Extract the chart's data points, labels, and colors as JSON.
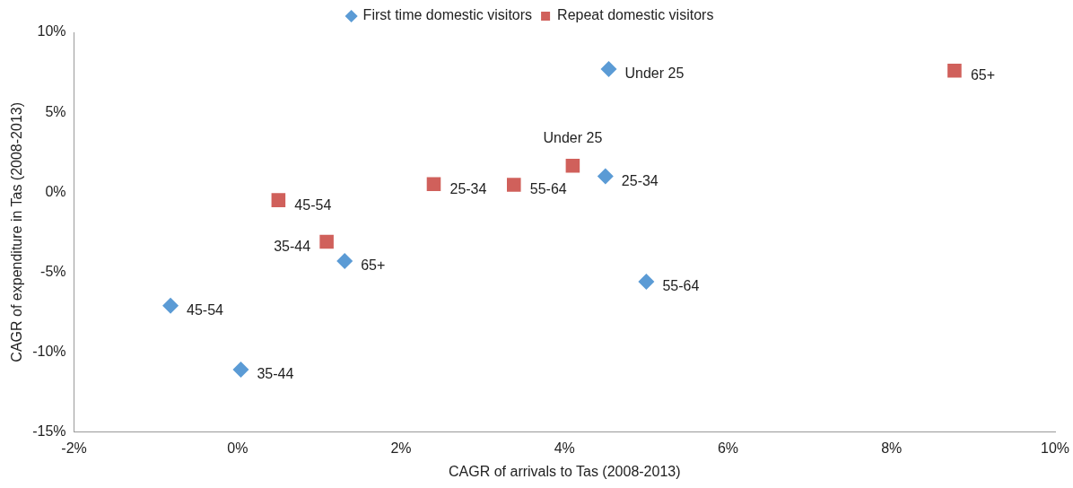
{
  "chart_data": {
    "type": "scatter",
    "xlabel": "CAGR of arrivals to Tas (2008-2013)",
    "ylabel": "CAGR of expenditure in Tas (2008-2013)",
    "xlim": [
      -2,
      10
    ],
    "ylim": [
      -15,
      10
    ],
    "xticks": [
      {
        "value": -2,
        "label": "-2%"
      },
      {
        "value": 0,
        "label": "0%"
      },
      {
        "value": 2,
        "label": "2%"
      },
      {
        "value": 4,
        "label": "4%"
      },
      {
        "value": 6,
        "label": "6%"
      },
      {
        "value": 8,
        "label": "8%"
      },
      {
        "value": 10,
        "label": "10%"
      }
    ],
    "yticks": [
      {
        "value": -15,
        "label": "-15%"
      },
      {
        "value": -10,
        "label": "-10%"
      },
      {
        "value": -5,
        "label": "-5%"
      },
      {
        "value": 0,
        "label": "0%"
      },
      {
        "value": 5,
        "label": "5%"
      },
      {
        "value": 10,
        "label": "10%"
      }
    ],
    "grid": false,
    "legend": "top",
    "series": [
      {
        "name": "First time domestic visitors",
        "color": "#5b9bd5",
        "marker": "diamond",
        "x": [
          4.54,
          4.5,
          5.0,
          1.31,
          -0.82,
          0.04
        ],
        "values": [
          7.7,
          1.0,
          -5.6,
          -4.3,
          -7.1,
          -11.1
        ]
      },
      {
        "name": "Repeat domestic visitors",
        "color": "#d0605b",
        "marker": "square",
        "x": [
          0.5,
          1.09,
          2.4,
          3.38,
          4.1,
          8.77
        ],
        "values": [
          -0.5,
          -3.1,
          0.5,
          0.46,
          1.65,
          7.6
        ]
      }
    ],
    "annotations": [
      {
        "text": "Under 25",
        "x": 4.54,
        "y": 7.7
      },
      {
        "text": "25-34",
        "x": 4.5,
        "y": 1.0
      },
      {
        "text": "55-64",
        "x": 5.0,
        "y": -5.6
      },
      {
        "text": "65+",
        "x": 1.31,
        "y": -4.3
      },
      {
        "text": "45-54",
        "x": -0.82,
        "y": -7.1
      },
      {
        "text": "35-44",
        "x": 0.04,
        "y": -11.1
      },
      {
        "text": "45-54",
        "x": 0.5,
        "y": -0.5
      },
      {
        "text": "35-44",
        "x": 1.09,
        "y": -3.1
      },
      {
        "text": "25-34",
        "x": 2.4,
        "y": 0.5
      },
      {
        "text": "55-64",
        "x": 3.38,
        "y": 0.46
      },
      {
        "text": "Under 25",
        "x": 4.1,
        "y": 1.65
      },
      {
        "text": "65+",
        "x": 8.77,
        "y": 7.6
      }
    ]
  }
}
